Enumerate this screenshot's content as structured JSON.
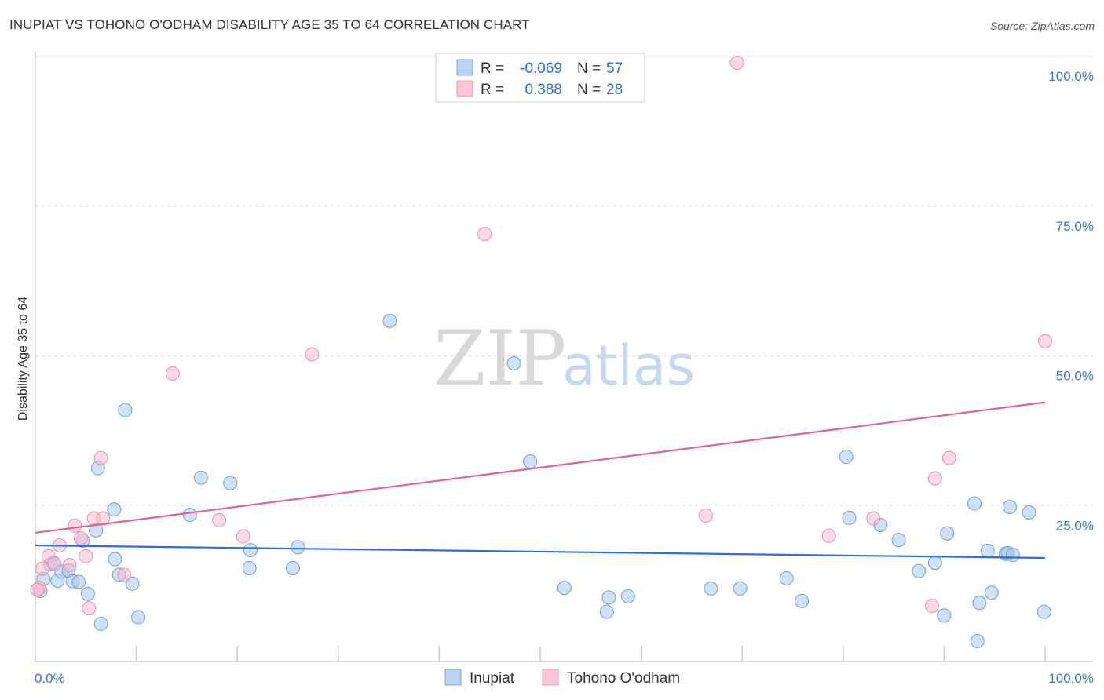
{
  "chart_data": {
    "type": "scatter",
    "title": "INUPIAT VS TOHONO O'ODHAM DISABILITY AGE 35 TO 64 CORRELATION CHART",
    "source": "Source: ZipAtlas.com",
    "ylabel": "Disability Age 35 to 64",
    "xlim": [
      0,
      100
    ],
    "ylim": [
      0,
      100
    ],
    "x_tick_labels": [
      "0.0%",
      "100.0%"
    ],
    "y_tick_labels": [
      "25.0%",
      "50.0%",
      "75.0%",
      "100.0%"
    ],
    "y_tick_values": [
      25,
      50,
      75,
      100
    ],
    "watermark": {
      "zip": "ZIP",
      "atlas": "atlas"
    },
    "legend": [
      {
        "r_label": "R =",
        "r_value": "-0.069",
        "n_label": "N =",
        "n_value": "57"
      },
      {
        "r_label": "R =",
        "r_value": "0.388",
        "n_label": "N =",
        "n_value": "28"
      }
    ],
    "series": [
      {
        "name": "Inupiat",
        "color": "#a9c8ef",
        "edge": "#6f9fd8",
        "line_color": "#2c6fd6",
        "trend": {
          "x0": 0,
          "y0": 19.4,
          "x1": 100,
          "y1": 17.3
        },
        "points": [
          [
            0.5,
            11.8
          ],
          [
            0.8,
            13.8
          ],
          [
            1.5,
            16.2
          ],
          [
            1.8,
            16.5
          ],
          [
            2.2,
            13.5
          ],
          [
            2.6,
            15.0
          ],
          [
            3.3,
            15.2
          ],
          [
            3.7,
            13.4
          ],
          [
            4.3,
            13.3
          ],
          [
            4.7,
            20.2
          ],
          [
            5.2,
            11.3
          ],
          [
            6.0,
            21.9
          ],
          [
            6.2,
            32.3
          ],
          [
            6.5,
            6.3
          ],
          [
            7.8,
            25.4
          ],
          [
            7.9,
            17.1
          ],
          [
            8.3,
            14.5
          ],
          [
            8.9,
            42.0
          ],
          [
            9.6,
            13.0
          ],
          [
            10.2,
            7.4
          ],
          [
            15.3,
            24.5
          ],
          [
            16.4,
            30.7
          ],
          [
            19.3,
            29.8
          ],
          [
            21.2,
            15.6
          ],
          [
            21.3,
            18.6
          ],
          [
            25.5,
            15.6
          ],
          [
            26.0,
            19.1
          ],
          [
            35.1,
            56.9
          ],
          [
            47.4,
            49.8
          ],
          [
            49.0,
            33.4
          ],
          [
            52.4,
            12.3
          ],
          [
            56.6,
            8.3
          ],
          [
            56.8,
            10.7
          ],
          [
            58.7,
            10.9
          ],
          [
            66.9,
            12.2
          ],
          [
            69.8,
            12.2
          ],
          [
            74.4,
            13.9
          ],
          [
            75.9,
            10.1
          ],
          [
            80.3,
            34.2
          ],
          [
            80.6,
            24.0
          ],
          [
            83.7,
            22.8
          ],
          [
            85.5,
            20.3
          ],
          [
            87.5,
            15.1
          ],
          [
            89.1,
            16.5
          ],
          [
            90.0,
            7.7
          ],
          [
            90.3,
            21.4
          ],
          [
            93.3,
            3.4
          ],
          [
            93.0,
            26.4
          ],
          [
            93.5,
            9.8
          ],
          [
            94.3,
            18.5
          ],
          [
            94.7,
            11.5
          ],
          [
            96.1,
            18.0
          ],
          [
            96.3,
            18.1
          ],
          [
            96.5,
            25.8
          ],
          [
            96.8,
            17.8
          ],
          [
            98.4,
            24.9
          ],
          [
            99.9,
            8.3
          ]
        ]
      },
      {
        "name": "Tohono O'odham",
        "color": "#f7bcd0",
        "edge": "#ea8fae",
        "line_color": "#e0648e",
        "trend": {
          "x0": 0,
          "y0": 21.5,
          "x1": 100,
          "y1": 43.3
        },
        "points": [
          [
            0.4,
            12.3
          ],
          [
            0.7,
            15.5
          ],
          [
            1.3,
            17.6
          ],
          [
            1.9,
            16.3
          ],
          [
            2.4,
            19.4
          ],
          [
            3.4,
            16.1
          ],
          [
            3.9,
            22.7
          ],
          [
            4.5,
            20.6
          ],
          [
            5.0,
            17.6
          ],
          [
            5.3,
            8.9
          ],
          [
            5.8,
            23.9
          ],
          [
            6.5,
            34.0
          ],
          [
            6.7,
            23.9
          ],
          [
            8.8,
            14.5
          ],
          [
            13.6,
            48.1
          ],
          [
            18.2,
            23.6
          ],
          [
            20.6,
            20.9
          ],
          [
            27.4,
            51.3
          ],
          [
            44.5,
            71.4
          ],
          [
            66.4,
            24.4
          ],
          [
            69.5,
            100.0
          ],
          [
            78.6,
            21.0
          ],
          [
            83.0,
            23.9
          ],
          [
            88.8,
            9.3
          ],
          [
            89.1,
            30.6
          ],
          [
            90.5,
            34.0
          ],
          [
            100.0,
            53.5
          ],
          [
            0.2,
            12.0
          ]
        ]
      }
    ]
  }
}
